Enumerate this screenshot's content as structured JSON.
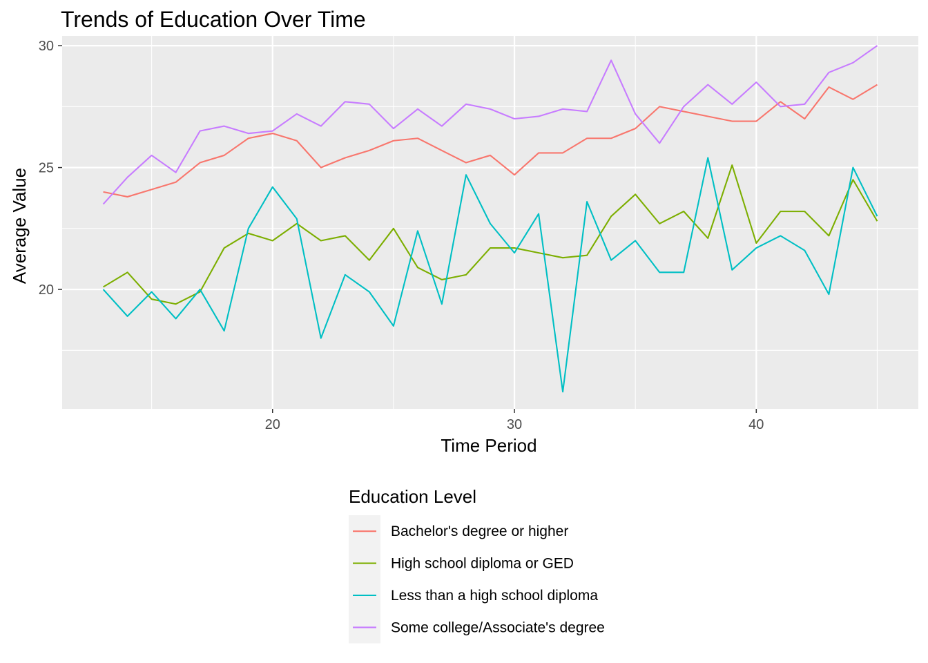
{
  "chart_data": {
    "type": "line",
    "title": "Trends of Education Over Time",
    "xlabel": "Time Period",
    "ylabel": "Average Value",
    "xlim": [
      11.3,
      46.7
    ],
    "ylim": [
      15.1,
      30.4
    ],
    "x_ticks": [
      20,
      30,
      40
    ],
    "y_ticks": [
      20,
      25,
      30
    ],
    "grid": true,
    "legend_title": "Education Level",
    "legend_position": "bottom",
    "x": [
      13,
      14,
      15,
      16,
      17,
      18,
      19,
      20,
      21,
      22,
      23,
      24,
      25,
      26,
      27,
      28,
      29,
      30,
      31,
      32,
      33,
      34,
      35,
      36,
      37,
      38,
      39,
      40,
      41,
      42,
      43,
      44,
      45
    ],
    "series": [
      {
        "name": "Bachelor's degree or higher",
        "color": "#F8766D",
        "values": [
          24.0,
          23.8,
          24.1,
          24.4,
          25.2,
          25.5,
          26.2,
          26.4,
          26.1,
          25.0,
          25.4,
          25.7,
          26.1,
          26.2,
          25.7,
          25.2,
          25.5,
          24.7,
          25.6,
          25.6,
          26.2,
          26.2,
          26.6,
          27.5,
          27.3,
          27.1,
          26.9,
          26.9,
          27.7,
          27.0,
          28.3,
          27.8,
          28.4
        ]
      },
      {
        "name": "High school diploma or GED",
        "color": "#7CAE00",
        "values": [
          20.1,
          20.7,
          19.6,
          19.4,
          19.9,
          21.7,
          22.3,
          22.0,
          22.7,
          22.0,
          22.2,
          21.2,
          22.5,
          20.9,
          20.4,
          20.6,
          21.7,
          21.7,
          21.5,
          21.3,
          21.4,
          23.0,
          23.9,
          22.7,
          23.2,
          22.1,
          25.1,
          21.9,
          23.2,
          23.2,
          22.2,
          24.5,
          22.8
        ]
      },
      {
        "name": "Less than a high school diploma",
        "color": "#00BFC4",
        "values": [
          20.0,
          18.9,
          19.9,
          18.8,
          20.0,
          18.3,
          22.5,
          24.2,
          22.9,
          18.0,
          20.6,
          19.9,
          18.5,
          22.4,
          19.4,
          24.7,
          22.7,
          21.5,
          23.1,
          15.8,
          23.6,
          21.2,
          22.0,
          20.7,
          20.7,
          25.4,
          20.8,
          21.7,
          22.2,
          21.6,
          19.8,
          25.0,
          23.0
        ]
      },
      {
        "name": "Some college/Associate's degree",
        "color": "#C77CFF",
        "values": [
          23.5,
          24.6,
          25.5,
          24.8,
          26.5,
          26.7,
          26.4,
          26.5,
          27.2,
          26.7,
          27.7,
          27.6,
          26.6,
          27.4,
          26.7,
          27.6,
          27.4,
          27.0,
          27.1,
          27.4,
          27.3,
          29.4,
          27.2,
          26.0,
          27.5,
          28.4,
          27.6,
          28.5,
          27.5,
          27.6,
          28.9,
          29.3,
          30.0
        ]
      }
    ]
  }
}
